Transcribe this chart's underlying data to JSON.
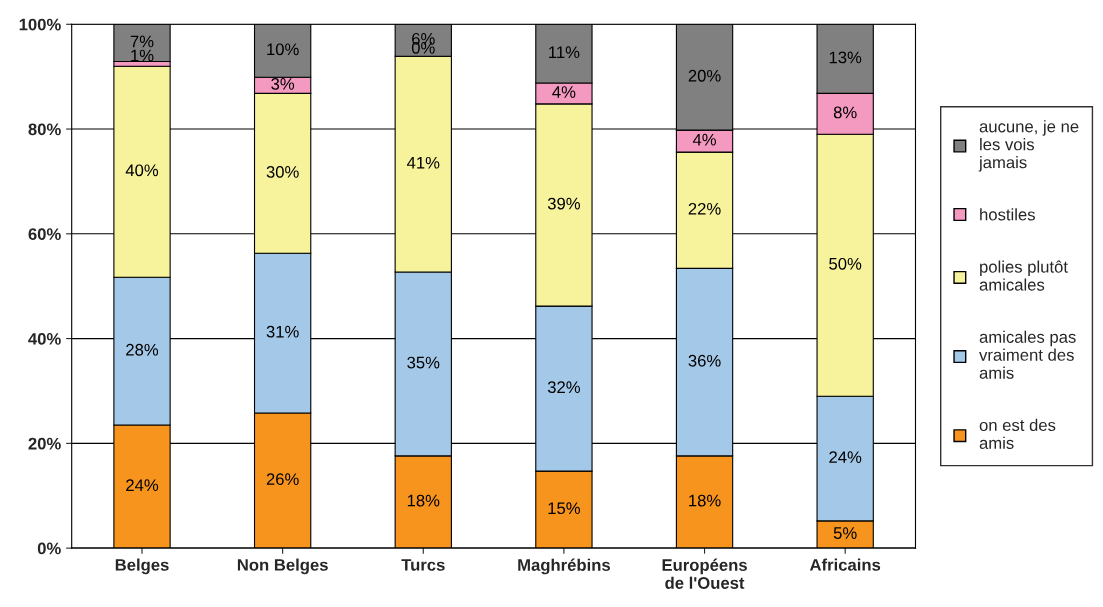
{
  "chart_data": {
    "type": "bar",
    "stacked": true,
    "categories": [
      "Belges",
      "Non Belges",
      "Turcs",
      "Maghrébins",
      "Européens\nde l'Ouest",
      "Africains"
    ],
    "series": [
      {
        "name": "on est des\namis",
        "color": "#f7941d",
        "values": [
          23.5,
          25.8,
          17.6,
          14.7,
          17.6,
          5.2
        ],
        "value_labels": [
          "24%",
          "26%",
          "18%",
          "15%",
          "18%",
          "5%"
        ]
      },
      {
        "name": "amicales pas\nvraiment des\namis",
        "color": "#a4c8e8",
        "values": [
          28.2,
          30.5,
          35.1,
          31.5,
          35.8,
          23.8
        ],
        "value_labels": [
          "28%",
          "31%",
          "35%",
          "32%",
          "36%",
          "24%"
        ]
      },
      {
        "name": "polies plutôt\namicales",
        "color": "#f7f29c",
        "values": [
          40.3,
          30.5,
          41.2,
          38.6,
          22.2,
          50.0
        ],
        "value_labels": [
          "40%",
          "30%",
          "41%",
          "39%",
          "22%",
          "50%"
        ]
      },
      {
        "name": "hostiles",
        "color": "#f49ac1",
        "values": [
          0.9,
          3.1,
          0,
          4.0,
          4.2,
          7.8
        ],
        "value_labels": [
          "1%",
          "3%",
          "0%",
          "4%",
          "4%",
          "8%"
        ]
      },
      {
        "name": "aucune, je ne\nles vois\njamais",
        "color": "#808080",
        "values": [
          7.1,
          10.1,
          6.1,
          11.2,
          20.2,
          13.2
        ],
        "value_labels": [
          "7%",
          "10%",
          "6%",
          "11%",
          "20%",
          "13%"
        ]
      }
    ],
    "ylim": [
      0,
      100
    ],
    "yticks": [
      {
        "value": 0,
        "label": "0%"
      },
      {
        "value": 20,
        "label": "20%"
      },
      {
        "value": 40,
        "label": "40%"
      },
      {
        "value": 60,
        "label": "60%"
      },
      {
        "value": 80,
        "label": "80%"
      },
      {
        "value": 100,
        "label": "100%"
      }
    ],
    "grid": "y",
    "legend": "right"
  }
}
